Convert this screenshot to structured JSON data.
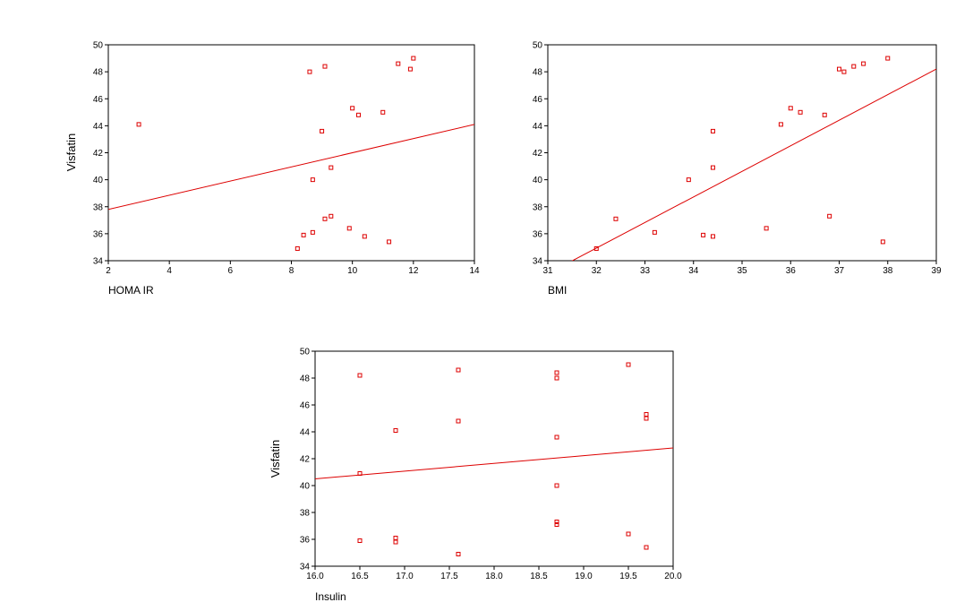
{
  "colors": {
    "marker": "#dd0000",
    "line": "#dd0000",
    "axis": "#000000"
  },
  "chart_data": [
    {
      "type": "scatter",
      "xlabel": "HOMA IR",
      "ylabel": "Visfatin",
      "xlim": [
        2,
        14
      ],
      "ylim": [
        34,
        50
      ],
      "xticks": [
        2,
        4,
        6,
        8,
        10,
        12,
        14
      ],
      "xtick_labels": [
        "2",
        "4",
        "6",
        "8",
        "10",
        "12",
        "14"
      ],
      "yticks": [
        34,
        36,
        38,
        40,
        42,
        44,
        46,
        48,
        50
      ],
      "ytick_labels": [
        "34",
        "36",
        "38",
        "40",
        "42",
        "44",
        "46",
        "48",
        "50"
      ],
      "points": [
        {
          "x": 3.0,
          "y": 44.1
        },
        {
          "x": 8.6,
          "y": 48.0
        },
        {
          "x": 9.1,
          "y": 48.4
        },
        {
          "x": 11.5,
          "y": 48.6
        },
        {
          "x": 12.0,
          "y": 49.0
        },
        {
          "x": 11.9,
          "y": 48.2
        },
        {
          "x": 10.0,
          "y": 45.3
        },
        {
          "x": 10.2,
          "y": 44.8
        },
        {
          "x": 11.0,
          "y": 45.0
        },
        {
          "x": 9.0,
          "y": 43.6
        },
        {
          "x": 9.3,
          "y": 40.9
        },
        {
          "x": 8.7,
          "y": 40.0
        },
        {
          "x": 9.3,
          "y": 37.3
        },
        {
          "x": 9.1,
          "y": 37.1
        },
        {
          "x": 9.9,
          "y": 36.4
        },
        {
          "x": 8.7,
          "y": 36.1
        },
        {
          "x": 8.4,
          "y": 35.9
        },
        {
          "x": 10.4,
          "y": 35.8
        },
        {
          "x": 11.2,
          "y": 35.4
        },
        {
          "x": 8.2,
          "y": 34.9
        }
      ],
      "fit_line": [
        {
          "x": 2,
          "y": 37.8
        },
        {
          "x": 14,
          "y": 44.1
        }
      ]
    },
    {
      "type": "scatter",
      "xlabel": "BMI",
      "ylabel": "",
      "xlim": [
        31,
        39
      ],
      "ylim": [
        34,
        50
      ],
      "xticks": [
        31,
        32,
        33,
        34,
        35,
        36,
        37,
        38,
        39
      ],
      "xtick_labels": [
        "31",
        "32",
        "33",
        "34",
        "35",
        "36",
        "37",
        "38",
        "39"
      ],
      "yticks": [
        34,
        36,
        38,
        40,
        42,
        44,
        46,
        48,
        50
      ],
      "ytick_labels": [
        "34",
        "36",
        "38",
        "40",
        "42",
        "44",
        "46",
        "48",
        "50"
      ],
      "points": [
        {
          "x": 32.0,
          "y": 34.9
        },
        {
          "x": 32.4,
          "y": 37.1
        },
        {
          "x": 33.2,
          "y": 36.1
        },
        {
          "x": 33.9,
          "y": 40.0
        },
        {
          "x": 34.2,
          "y": 35.9
        },
        {
          "x": 34.4,
          "y": 35.8
        },
        {
          "x": 34.4,
          "y": 40.9
        },
        {
          "x": 34.4,
          "y": 43.6
        },
        {
          "x": 35.5,
          "y": 36.4
        },
        {
          "x": 35.8,
          "y": 44.1
        },
        {
          "x": 36.0,
          "y": 45.3
        },
        {
          "x": 36.2,
          "y": 45.0
        },
        {
          "x": 36.7,
          "y": 44.8
        },
        {
          "x": 36.8,
          "y": 37.3
        },
        {
          "x": 37.0,
          "y": 48.2
        },
        {
          "x": 37.1,
          "y": 48.0
        },
        {
          "x": 37.3,
          "y": 48.4
        },
        {
          "x": 37.5,
          "y": 48.6
        },
        {
          "x": 37.9,
          "y": 35.4
        },
        {
          "x": 38.0,
          "y": 49.0
        }
      ],
      "fit_line": [
        {
          "x": 31.4,
          "y": 33.8
        },
        {
          "x": 39,
          "y": 48.2
        }
      ]
    },
    {
      "type": "scatter",
      "xlabel": "Insulin",
      "ylabel": "Visfatin",
      "xlim": [
        16.0,
        20.0
      ],
      "ylim": [
        34,
        50
      ],
      "xticks": [
        16.0,
        16.5,
        17.0,
        17.5,
        18.0,
        18.5,
        19.0,
        19.5,
        20.0
      ],
      "xtick_labels": [
        "16.0",
        "16.5",
        "17.0",
        "17.5",
        "18.0",
        "18.5",
        "19.0",
        "19.5",
        "20.0"
      ],
      "yticks": [
        34,
        36,
        38,
        40,
        42,
        44,
        46,
        48,
        50
      ],
      "ytick_labels": [
        "34",
        "36",
        "38",
        "40",
        "42",
        "44",
        "46",
        "48",
        "50"
      ],
      "points": [
        {
          "x": 16.5,
          "y": 48.2
        },
        {
          "x": 16.5,
          "y": 40.9
        },
        {
          "x": 16.5,
          "y": 35.9
        },
        {
          "x": 16.9,
          "y": 44.1
        },
        {
          "x": 16.9,
          "y": 36.1
        },
        {
          "x": 16.9,
          "y": 35.8
        },
        {
          "x": 17.6,
          "y": 48.6
        },
        {
          "x": 17.6,
          "y": 44.8
        },
        {
          "x": 17.6,
          "y": 34.9
        },
        {
          "x": 18.7,
          "y": 48.4
        },
        {
          "x": 18.7,
          "y": 48.0
        },
        {
          "x": 18.7,
          "y": 43.6
        },
        {
          "x": 18.7,
          "y": 40.0
        },
        {
          "x": 18.7,
          "y": 37.3
        },
        {
          "x": 18.7,
          "y": 37.1
        },
        {
          "x": 19.5,
          "y": 49.0
        },
        {
          "x": 19.5,
          "y": 36.4
        },
        {
          "x": 19.7,
          "y": 45.3
        },
        {
          "x": 19.7,
          "y": 45.0
        },
        {
          "x": 19.7,
          "y": 35.4
        }
      ],
      "fit_line": [
        {
          "x": 16.0,
          "y": 40.5
        },
        {
          "x": 20.0,
          "y": 42.8
        }
      ]
    }
  ]
}
